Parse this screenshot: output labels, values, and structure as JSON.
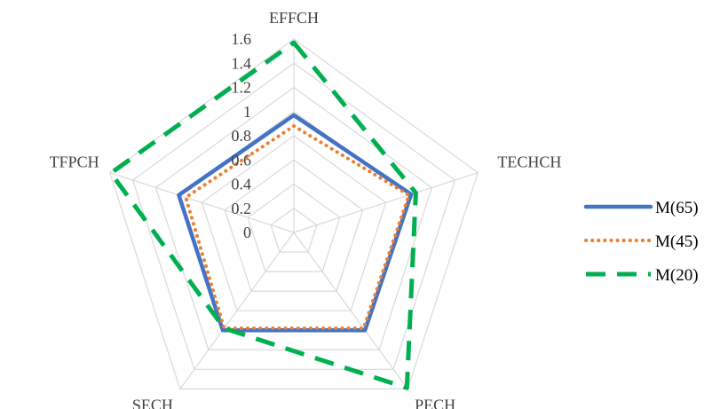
{
  "chart_data": {
    "type": "radar",
    "title": "",
    "axes": [
      "EFFCH",
      "TECHCH",
      "PECH",
      "SECH",
      "TFPCH"
    ],
    "r_ticks": [
      0,
      0.2,
      0.4,
      0.6,
      0.8,
      1,
      1.2,
      1.4,
      1.6
    ],
    "r_tick_labels": [
      "0",
      "0.2",
      "0.4",
      "0.6",
      "0.8",
      "1",
      "1.2",
      "1.4",
      "1.6"
    ],
    "rlim": [
      0,
      1.6
    ],
    "grid": true,
    "legend": "right",
    "series": [
      {
        "name": "M(65)",
        "values": [
          0.97,
          1.02,
          1.0,
          1.0,
          1.0
        ],
        "color": "#4472c4",
        "style": "solid"
      },
      {
        "name": "M(45)",
        "values": [
          0.88,
          1.0,
          0.98,
          0.98,
          0.94
        ],
        "color": "#ed7d31",
        "style": "dotted"
      },
      {
        "name": "M(20)",
        "values": [
          1.57,
          1.06,
          1.59,
          0.98,
          1.59
        ],
        "color": "#00b050",
        "style": "dashed"
      }
    ]
  }
}
